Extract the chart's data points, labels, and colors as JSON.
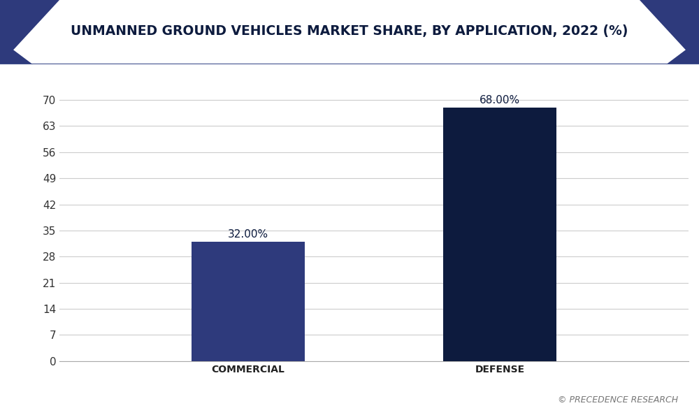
{
  "title": "UNMANNED GROUND VEHICLES MARKET SHARE, BY APPLICATION, 2022 (%)",
  "categories": [
    "COMMERCIAL",
    "DEFENSE"
  ],
  "values": [
    32.0,
    68.0
  ],
  "bar_colors": [
    "#2e3a7c",
    "#0d1b3e"
  ],
  "value_labels": [
    "32.00%",
    "68.00%"
  ],
  "yticks": [
    0,
    7,
    14,
    21,
    28,
    35,
    42,
    49,
    56,
    63,
    70
  ],
  "ylim": [
    0,
    74
  ],
  "background_color": "#ffffff",
  "plot_bg_color": "#ffffff",
  "title_color": "#0d1b3e",
  "header_bg_color": "#ffffff",
  "triangle_color": "#2e3a7c",
  "grid_color": "#cccccc",
  "watermark": "© PRECEDENCE RESEARCH",
  "title_fontsize": 13.5,
  "tick_fontsize": 11,
  "label_fontsize": 10,
  "value_fontsize": 11,
  "watermark_fontsize": 9,
  "bar_width": 0.18,
  "x_positions": [
    0.3,
    0.7
  ]
}
